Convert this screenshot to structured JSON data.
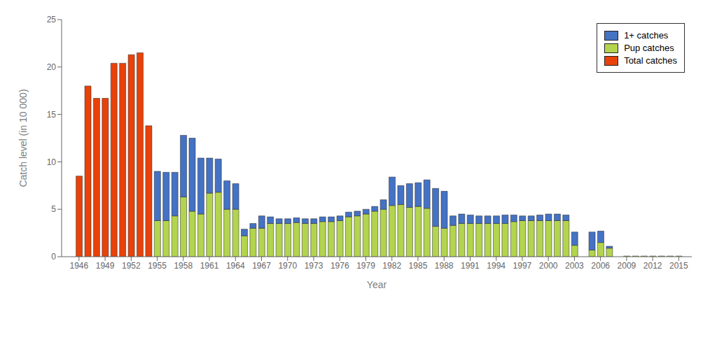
{
  "chart_data": {
    "type": "bar",
    "stacked": true,
    "grid": false,
    "legend": "upper right",
    "xlabel": "Year",
    "ylabel": "Catch level (in 10 000)",
    "x": [
      1946,
      1947,
      1948,
      1949,
      1950,
      1951,
      1952,
      1953,
      1954,
      1955,
      1956,
      1957,
      1958,
      1959,
      1960,
      1961,
      1962,
      1963,
      1964,
      1965,
      1966,
      1967,
      1968,
      1969,
      1970,
      1971,
      1972,
      1973,
      1974,
      1975,
      1976,
      1977,
      1978,
      1979,
      1980,
      1981,
      1982,
      1983,
      1984,
      1985,
      1986,
      1987,
      1988,
      1989,
      1990,
      1991,
      1992,
      1993,
      1994,
      1995,
      1996,
      1997,
      1998,
      1999,
      2000,
      2001,
      2002,
      2003,
      2005,
      2006,
      2007,
      2009,
      2010,
      2011,
      2012,
      2013,
      2014,
      2015
    ],
    "series": [
      {
        "name": "Total catches",
        "color": "#e8420a",
        "values": [
          8.5,
          18.0,
          16.7,
          16.7,
          20.4,
          20.4,
          21.3,
          21.5,
          13.8,
          null,
          null,
          null,
          null,
          null,
          null,
          null,
          null,
          null,
          null,
          null,
          null,
          null,
          null,
          null,
          null,
          null,
          null,
          null,
          null,
          null,
          null,
          null,
          null,
          null,
          null,
          null,
          null,
          null,
          null,
          null,
          null,
          null,
          null,
          null,
          null,
          null,
          null,
          null,
          null,
          null,
          null,
          null,
          null,
          null,
          null,
          null,
          null,
          null,
          null,
          null,
          null,
          null,
          null,
          null,
          null,
          null,
          null,
          null
        ]
      },
      {
        "name": "Pup catches",
        "color": "#b3d44e",
        "values": [
          null,
          null,
          null,
          null,
          null,
          null,
          null,
          null,
          null,
          3.8,
          3.8,
          4.3,
          6.3,
          4.8,
          4.5,
          6.7,
          6.8,
          5.0,
          5.0,
          2.2,
          3.0,
          3.0,
          3.5,
          3.5,
          3.5,
          3.6,
          3.5,
          3.5,
          3.7,
          3.7,
          3.8,
          4.2,
          4.3,
          4.5,
          4.8,
          5.0,
          5.4,
          5.5,
          5.2,
          5.3,
          5.1,
          3.2,
          3.0,
          3.3,
          3.5,
          3.5,
          3.5,
          3.5,
          3.5,
          3.5,
          3.7,
          3.8,
          3.8,
          3.8,
          3.8,
          3.8,
          3.8,
          1.2,
          0.7,
          1.5,
          0.9,
          0.07,
          0.07,
          0.07,
          0.07,
          0.07,
          0.07,
          0.07
        ]
      },
      {
        "name": "1+ catches",
        "color": "#4472c4",
        "values": [
          null,
          null,
          null,
          null,
          null,
          null,
          null,
          null,
          null,
          5.2,
          5.1,
          4.6,
          6.5,
          7.7,
          5.9,
          3.7,
          3.5,
          3.0,
          2.7,
          0.7,
          0.5,
          1.3,
          0.7,
          0.5,
          0.5,
          0.5,
          0.5,
          0.5,
          0.5,
          0.5,
          0.5,
          0.5,
          0.5,
          0.5,
          0.5,
          1.0,
          3.0,
          2.0,
          2.5,
          2.5,
          3.0,
          4.0,
          3.9,
          1.0,
          1.0,
          0.9,
          0.8,
          0.8,
          0.8,
          0.9,
          0.7,
          0.5,
          0.5,
          0.6,
          0.7,
          0.7,
          0.6,
          1.4,
          1.9,
          1.2,
          0.2,
          0.0,
          0.0,
          0.0,
          0.0,
          0.0,
          0.0,
          0.0
        ]
      }
    ],
    "xlim": [
      1944.0,
      2016.5
    ],
    "xticks": [
      1946,
      1949,
      1952,
      1955,
      1958,
      1961,
      1964,
      1967,
      1970,
      1973,
      1976,
      1979,
      1982,
      1985,
      1988,
      1991,
      1994,
      1997,
      2000,
      2003,
      2006,
      2009,
      2012,
      2015
    ],
    "ylim": [
      0,
      25
    ],
    "yticks": [
      0,
      5,
      10,
      15,
      20,
      25
    ]
  }
}
